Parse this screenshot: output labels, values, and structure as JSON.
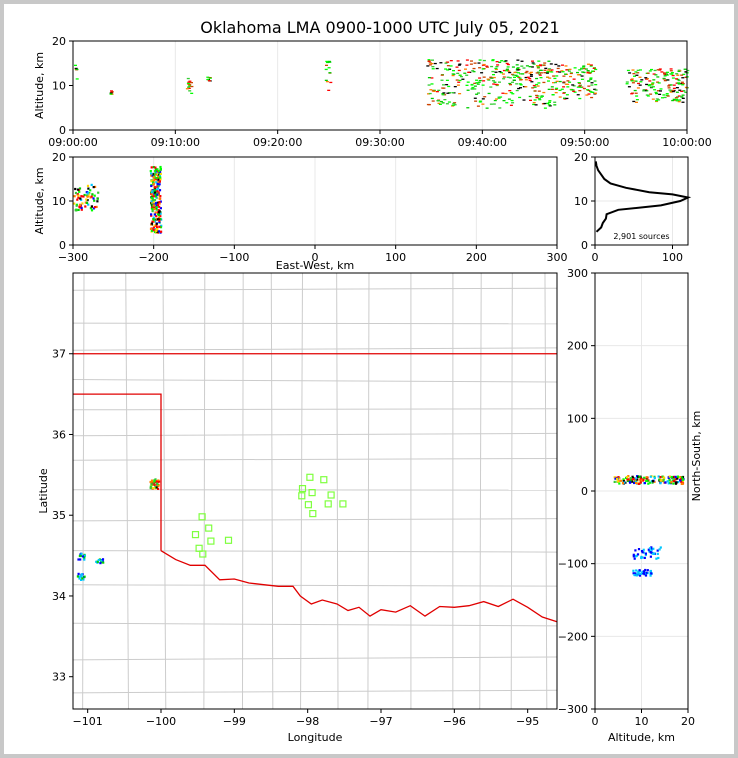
{
  "title": "Oklahoma LMA 0900-1000 UTC July 05, 2021",
  "chart_data": [
    {
      "panel": "time-altitude",
      "type": "scatter",
      "ylabel": "Altitude, km",
      "xlim": [
        "09:00:00",
        "10:00:00"
      ],
      "ylim": [
        0,
        20
      ],
      "xticks": [
        "09:00:00",
        "09:10:00",
        "09:20:00",
        "09:30:00",
        "09:40:00",
        "09:50:00",
        "10:00:00"
      ],
      "yticks": [
        "0",
        "10",
        "20"
      ],
      "clusters": [
        {
          "t_min": [
            0.1,
            0.3
          ],
          "alt_km": [
            10,
            15
          ]
        },
        {
          "t_min": [
            3.5,
            3.7
          ],
          "alt_km": [
            8,
            9
          ]
        },
        {
          "t_min": [
            11,
            11.5
          ],
          "alt_km": [
            8,
            12
          ]
        },
        {
          "t_min": [
            13,
            13.3
          ],
          "alt_km": [
            11,
            12
          ]
        },
        {
          "t_min": [
            24.6,
            25.1
          ],
          "alt_km": [
            9,
            16
          ]
        },
        {
          "t_min": [
            34.5,
            47
          ],
          "alt_km": [
            5,
            16
          ]
        },
        {
          "t_min": [
            47,
            51
          ],
          "alt_km": [
            7,
            15
          ]
        },
        {
          "t_min": [
            54,
            60
          ],
          "alt_km": [
            6,
            14
          ]
        }
      ]
    },
    {
      "panel": "east-west-altitude",
      "type": "scatter",
      "xlabel": "East-West, km",
      "ylabel": "Altitude, km",
      "xlim": [
        -300,
        300
      ],
      "ylim": [
        0,
        20
      ],
      "xticks": [
        "−300",
        "−200",
        "−100",
        "0",
        "100",
        "200",
        "300"
      ],
      "yticks": [
        "0",
        "10",
        "20"
      ],
      "clusters": [
        {
          "x_km": [
            -300,
            -270
          ],
          "alt_km": [
            8,
            14
          ]
        },
        {
          "x_km": [
            -205,
            -192
          ],
          "alt_km": [
            3,
            18
          ]
        }
      ]
    },
    {
      "panel": "altitude-histogram",
      "type": "line",
      "xlim": [
        0,
        120
      ],
      "ylim": [
        0,
        20
      ],
      "xticks": [
        "0",
        "100"
      ],
      "yticks": [
        "0",
        "10",
        "20"
      ],
      "annotation": "2,901 sources",
      "profile": [
        {
          "alt_km": 3,
          "count": 2
        },
        {
          "alt_km": 4,
          "count": 8
        },
        {
          "alt_km": 5,
          "count": 10
        },
        {
          "alt_km": 6,
          "count": 14
        },
        {
          "alt_km": 7,
          "count": 15
        },
        {
          "alt_km": 8,
          "count": 30
        },
        {
          "alt_km": 9,
          "count": 85
        },
        {
          "alt_km": 10,
          "count": 110
        },
        {
          "alt_km": 10.8,
          "count": 120
        },
        {
          "alt_km": 11.5,
          "count": 100
        },
        {
          "alt_km": 12,
          "count": 70
        },
        {
          "alt_km": 13,
          "count": 40
        },
        {
          "alt_km": 14,
          "count": 20
        },
        {
          "alt_km": 15,
          "count": 12
        },
        {
          "alt_km": 16,
          "count": 8
        },
        {
          "alt_km": 17,
          "count": 4
        },
        {
          "alt_km": 18,
          "count": 2
        },
        {
          "alt_km": 19,
          "count": 1
        }
      ]
    },
    {
      "panel": "plan-view",
      "type": "scatter",
      "xlabel": "Longitude",
      "ylabel": "Latitude",
      "xlim": [
        -101.2,
        -94.6
      ],
      "ylim": [
        32.6,
        38.0
      ],
      "xticks": [
        "−101",
        "−100",
        "−99",
        "−98",
        "−97",
        "−96",
        "−95"
      ],
      "yticks": [
        "33",
        "34",
        "35",
        "36",
        "37"
      ],
      "clusters": [
        {
          "lon": -100.1,
          "lat": 35.4
        },
        {
          "lon": -101.1,
          "lat": 34.5
        },
        {
          "lon": -101.1,
          "lat": 34.25
        },
        {
          "lon": -100.85,
          "lat": 34.45
        }
      ],
      "stations": [
        {
          "lon": -97.97,
          "lat": 35.47
        },
        {
          "lon": -97.78,
          "lat": 35.44
        },
        {
          "lon": -98.07,
          "lat": 35.33
        },
        {
          "lon": -97.94,
          "lat": 35.28
        },
        {
          "lon": -98.08,
          "lat": 35.24
        },
        {
          "lon": -97.68,
          "lat": 35.25
        },
        {
          "lon": -97.52,
          "lat": 35.14
        },
        {
          "lon": -97.72,
          "lat": 35.14
        },
        {
          "lon": -97.99,
          "lat": 35.13
        },
        {
          "lon": -97.93,
          "lat": 35.02
        },
        {
          "lon": -99.44,
          "lat": 34.98
        },
        {
          "lon": -99.35,
          "lat": 34.84
        },
        {
          "lon": -99.53,
          "lat": 34.76
        },
        {
          "lon": -99.32,
          "lat": 34.68
        },
        {
          "lon": -99.08,
          "lat": 34.69
        },
        {
          "lon": -99.48,
          "lat": 34.59
        },
        {
          "lon": -99.43,
          "lat": 34.52
        }
      ]
    },
    {
      "panel": "altitude-north-south",
      "type": "scatter",
      "xlabel": "Altitude, km",
      "ylabel": "North-South, km",
      "xlim": [
        0,
        20
      ],
      "ylim": [
        -300,
        300
      ],
      "xticks": [
        "0",
        "10",
        "20"
      ],
      "yticks": [
        "−300",
        "−200",
        "−100",
        "0",
        "100",
        "200",
        "300"
      ],
      "clusters": [
        {
          "alt_km": [
            4,
            19
          ],
          "y_km": [
            11,
            22
          ]
        },
        {
          "alt_km": [
            8,
            14
          ],
          "y_km": [
            -92,
            -75
          ]
        },
        {
          "alt_km": [
            8,
            12
          ],
          "y_km": [
            -115,
            -107
          ]
        }
      ]
    }
  ],
  "colors": {
    "border": "#e00000",
    "county": "#cccccc",
    "station": "#7fff3f",
    "histogram": "#000000",
    "frame": "#c8c8c8"
  }
}
